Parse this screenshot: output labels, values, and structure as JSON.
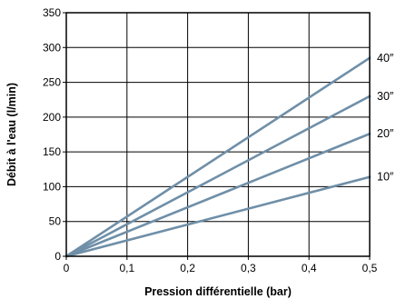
{
  "chart_data": {
    "type": "line",
    "xlabel": "Pression différentielle (bar)",
    "ylabel": "Débit à l'eau (l/min)",
    "xlim": [
      0,
      0.5
    ],
    "ylim": [
      0,
      350
    ],
    "x_ticks": [
      0,
      0.1,
      0.2,
      0.3,
      0.4,
      0.5
    ],
    "x_tick_labels": [
      "0",
      "0,1",
      "0,2",
      "0,3",
      "0,4",
      "0,5"
    ],
    "y_ticks": [
      0,
      50,
      100,
      150,
      200,
      250,
      300,
      350
    ],
    "y_tick_labels": [
      "0",
      "50",
      "100",
      "150",
      "200",
      "250",
      "300",
      "350"
    ],
    "grid": true,
    "series": [
      {
        "name": "40″",
        "color": "#6f8fa8",
        "points": [
          [
            0,
            0
          ],
          [
            0.5,
            285
          ]
        ]
      },
      {
        "name": "30″",
        "color": "#6f8fa8",
        "points": [
          [
            0,
            0
          ],
          [
            0.5,
            230
          ]
        ]
      },
      {
        "name": "20″",
        "color": "#6f8fa8",
        "points": [
          [
            0,
            0
          ],
          [
            0.5,
            176
          ]
        ]
      },
      {
        "name": "10″",
        "color": "#6f8fa8",
        "points": [
          [
            0,
            0
          ],
          [
            0.5,
            114
          ]
        ]
      }
    ]
  }
}
